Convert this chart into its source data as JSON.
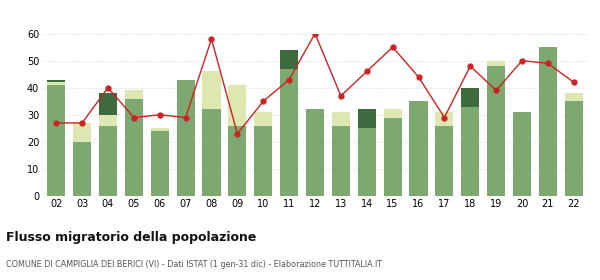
{
  "years": [
    "02",
    "03",
    "04",
    "05",
    "06",
    "07",
    "08",
    "09",
    "10",
    "11",
    "12",
    "13",
    "14",
    "15",
    "16",
    "17",
    "18",
    "19",
    "20",
    "21",
    "22"
  ],
  "iscritti_comuni": [
    41,
    20,
    26,
    36,
    24,
    43,
    32,
    26,
    26,
    47,
    32,
    26,
    25,
    29,
    35,
    26,
    33,
    48,
    31,
    55,
    35
  ],
  "iscritti_estero": [
    1,
    7,
    4,
    3,
    1,
    0,
    14,
    15,
    5,
    0,
    0,
    5,
    0,
    3,
    0,
    5,
    0,
    2,
    0,
    0,
    3
  ],
  "iscritti_altri": [
    1,
    0,
    8,
    0,
    0,
    0,
    0,
    0,
    0,
    7,
    0,
    0,
    7,
    0,
    0,
    0,
    7,
    0,
    0,
    0,
    0
  ],
  "cancellati": [
    27,
    27,
    40,
    29,
    30,
    29,
    58,
    23,
    35,
    43,
    60,
    37,
    46,
    55,
    44,
    29,
    48,
    39,
    50,
    49,
    42
  ],
  "color_comuni": "#7da870",
  "color_estero": "#dde8b0",
  "color_altri": "#3d6b3d",
  "color_cancellati": "#cc2222",
  "title": "Flusso migratorio della popolazione",
  "subtitle": "COMUNE DI CAMPIGLIA DEI BERICI (VI) - Dati ISTAT (1 gen-31 dic) - Elaborazione TUTTITALIA.IT",
  "ylabel_max": 60,
  "yticks": [
    0,
    10,
    20,
    30,
    40,
    50,
    60
  ],
  "bg_color": "#ffffff",
  "grid_color": "#cccccc"
}
